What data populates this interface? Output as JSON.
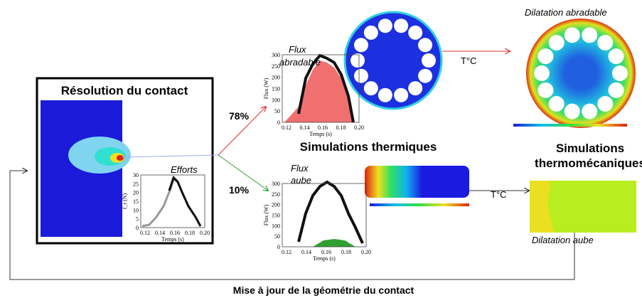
{
  "contact": {
    "title": "Résolution du contact",
    "efforts_label": "Efforts",
    "chart": {
      "ylabel": "f_r (N)",
      "xlabel": "Temps (s)",
      "yticks": [
        "0",
        "5",
        "10",
        "15",
        "20",
        "25",
        "30"
      ],
      "xticks": [
        "0.12",
        "0.14",
        "0.16",
        "0.18",
        "0.20"
      ]
    }
  },
  "split": {
    "top": "78%",
    "bottom": "10%"
  },
  "flux_abradable": {
    "label": [
      "Flux",
      "abradable"
    ],
    "chart": {
      "ylabel": "Flux (W)",
      "xlabel": "Temps (s)",
      "yticks": [
        "0",
        "50",
        "100",
        "150",
        "200",
        "250",
        "300"
      ],
      "xticks": [
        "0.12",
        "0.14",
        "0.16",
        "0.18",
        "0.20"
      ]
    }
  },
  "flux_aube": {
    "label": [
      "Flux",
      "aube"
    ],
    "chart": {
      "ylabel": "Flux (W)",
      "xlabel": "Temps (s)",
      "yticks": [
        "0",
        "50",
        "100",
        "150",
        "200",
        "250",
        "300"
      ],
      "xticks": [
        "0.12",
        "0.14",
        "0.16",
        "0.18",
        "0.20"
      ]
    }
  },
  "thermal_title": "Simulations thermiques",
  "thermo_title": [
    "Simulations",
    "thermomécaniques"
  ],
  "tc_top": "T°C",
  "tc_bottom": "T°C",
  "dilatation_abradable": "Dilatation abradable",
  "dilatation_aube": "Dilatation aube",
  "loop_label": "Mise à jour de la géométrie du contact"
}
